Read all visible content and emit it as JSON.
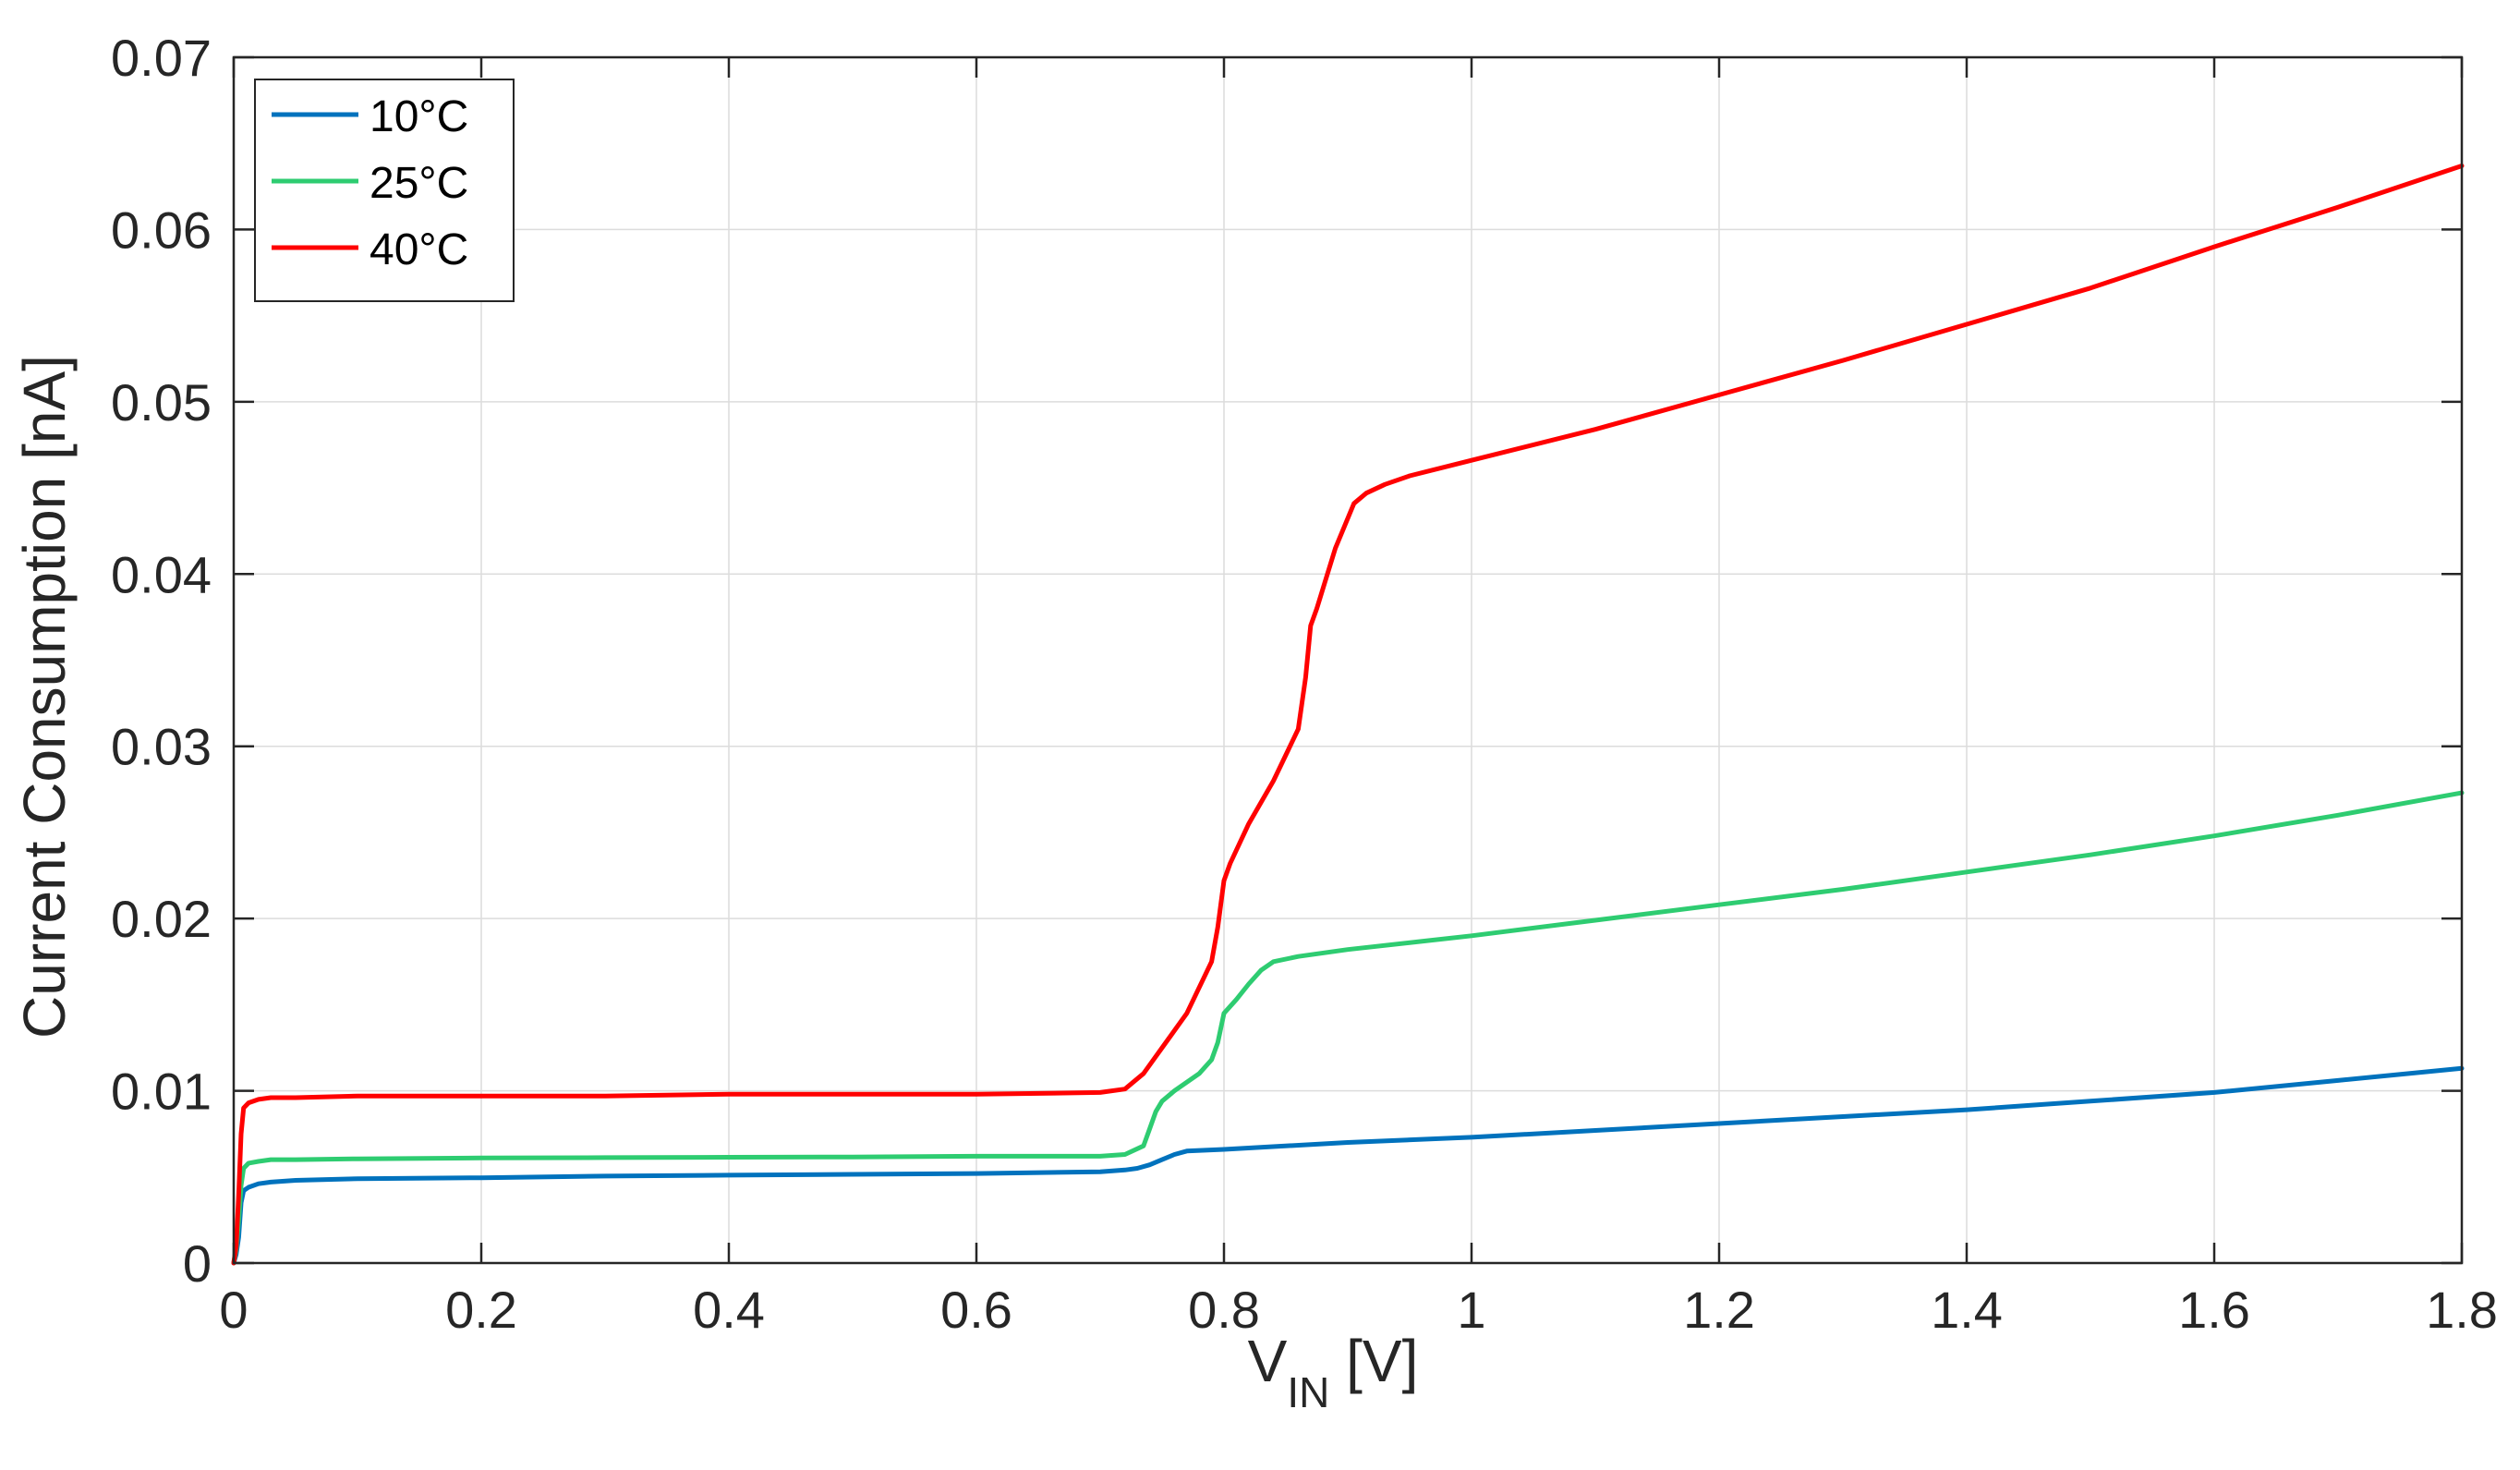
{
  "chart_data": {
    "type": "line",
    "xlabel": {
      "main": "V",
      "sub": "IN",
      "unit": " [V]"
    },
    "ylabel": "Current Consumption [nA]",
    "xlim": [
      0,
      1.8
    ],
    "ylim": [
      0,
      0.07
    ],
    "xticks": [
      0,
      0.2,
      0.4,
      0.6,
      0.8,
      1.0,
      1.2,
      1.4,
      1.6,
      1.8
    ],
    "xtick_labels": [
      "0",
      "0.2",
      "0.4",
      "0.6",
      "0.8",
      "1",
      "1.2",
      "1.4",
      "1.6",
      "1.8"
    ],
    "yticks": [
      0,
      0.01,
      0.02,
      0.03,
      0.04,
      0.05,
      0.06,
      0.07
    ],
    "ytick_labels": [
      "0",
      "0.01",
      "0.02",
      "0.03",
      "0.04",
      "0.05",
      "0.06",
      "0.07"
    ],
    "grid": true,
    "legend_position": "top-left",
    "series": [
      {
        "name": "10°C",
        "color": "#0072BD",
        "x": [
          0,
          0.002,
          0.004,
          0.006,
          0.008,
          0.012,
          0.02,
          0.03,
          0.05,
          0.1,
          0.2,
          0.3,
          0.4,
          0.5,
          0.6,
          0.7,
          0.72,
          0.73,
          0.74,
          0.75,
          0.76,
          0.77,
          0.8,
          0.9,
          1.0,
          1.1,
          1.2,
          1.3,
          1.4,
          1.5,
          1.6,
          1.7,
          1.8
        ],
        "y": [
          0,
          0.0005,
          0.0015,
          0.0035,
          0.0042,
          0.0044,
          0.0046,
          0.0047,
          0.0048,
          0.0049,
          0.00495,
          0.00505,
          0.0051,
          0.00515,
          0.0052,
          0.0053,
          0.0054,
          0.0055,
          0.0057,
          0.006,
          0.0063,
          0.0065,
          0.0066,
          0.007,
          0.0073,
          0.0077,
          0.0081,
          0.0085,
          0.0089,
          0.0094,
          0.0099,
          0.0106,
          0.0113
        ]
      },
      {
        "name": "25°C",
        "color": "#2ECC71",
        "x": [
          0,
          0.002,
          0.004,
          0.006,
          0.008,
          0.012,
          0.02,
          0.03,
          0.05,
          0.1,
          0.2,
          0.3,
          0.4,
          0.5,
          0.6,
          0.7,
          0.72,
          0.735,
          0.74,
          0.745,
          0.75,
          0.76,
          0.78,
          0.79,
          0.795,
          0.8,
          0.81,
          0.82,
          0.83,
          0.84,
          0.86,
          0.9,
          1.0,
          1.1,
          1.2,
          1.3,
          1.4,
          1.5,
          1.6,
          1.7,
          1.8
        ],
        "y": [
          0,
          0.0008,
          0.0025,
          0.0045,
          0.0055,
          0.0058,
          0.0059,
          0.006,
          0.006,
          0.00605,
          0.0061,
          0.00612,
          0.00614,
          0.00616,
          0.0062,
          0.0062,
          0.0063,
          0.0068,
          0.0078,
          0.0088,
          0.0094,
          0.01,
          0.011,
          0.0118,
          0.0128,
          0.0145,
          0.0153,
          0.0162,
          0.017,
          0.0175,
          0.0178,
          0.0182,
          0.019,
          0.0199,
          0.0208,
          0.0217,
          0.0227,
          0.0237,
          0.0248,
          0.026,
          0.0273
        ]
      },
      {
        "name": "40°C",
        "color": "#FF0000",
        "x": [
          0,
          0.002,
          0.004,
          0.006,
          0.008,
          0.012,
          0.02,
          0.03,
          0.05,
          0.1,
          0.2,
          0.3,
          0.4,
          0.5,
          0.6,
          0.7,
          0.72,
          0.735,
          0.75,
          0.77,
          0.79,
          0.795,
          0.8,
          0.805,
          0.82,
          0.84,
          0.86,
          0.866,
          0.87,
          0.875,
          0.89,
          0.905,
          0.915,
          0.93,
          0.95,
          1.0,
          1.1,
          1.2,
          1.3,
          1.4,
          1.5,
          1.6,
          1.7,
          1.8
        ],
        "y": [
          0,
          0.001,
          0.004,
          0.0075,
          0.009,
          0.0093,
          0.0095,
          0.0096,
          0.0096,
          0.0097,
          0.0097,
          0.0097,
          0.0098,
          0.0098,
          0.0098,
          0.0099,
          0.0101,
          0.011,
          0.0125,
          0.0145,
          0.0175,
          0.0195,
          0.0222,
          0.0232,
          0.0255,
          0.028,
          0.031,
          0.034,
          0.037,
          0.038,
          0.0415,
          0.0441,
          0.0447,
          0.0452,
          0.0457,
          0.0466,
          0.0484,
          0.0504,
          0.0524,
          0.0545,
          0.0566,
          0.059,
          0.0613,
          0.0637
        ]
      }
    ]
  }
}
